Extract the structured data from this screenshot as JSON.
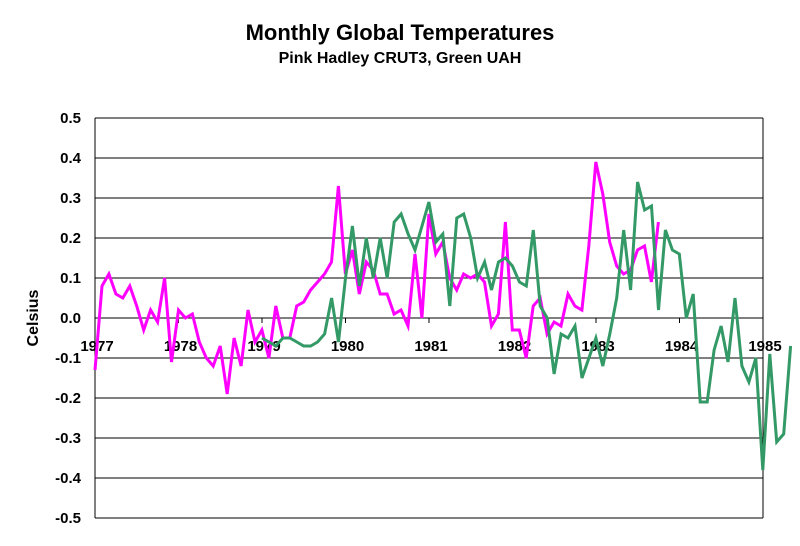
{
  "chart_data": {
    "type": "line",
    "title": "Monthly Global Temperatures",
    "subtitle": "Pink Hadley CRUT3, Green UAH",
    "xlabel": "",
    "ylabel": "Celsius",
    "xlim": [
      1977,
      1985
    ],
    "ylim": [
      -0.5,
      0.5
    ],
    "x_ticks": [
      1977,
      1978,
      1979,
      1980,
      1981,
      1982,
      1983,
      1984,
      1985
    ],
    "y_ticks": [
      0.5,
      0.4,
      0.3,
      0.2,
      0.1,
      0.0,
      -0.1,
      -0.2,
      -0.3,
      -0.4,
      -0.5
    ],
    "y_tick_labels": [
      "0.5",
      "0.4",
      "0.3",
      "0.2",
      "0.1",
      "0.0",
      "-0.1",
      "-0.2",
      "-0.3",
      "-0.4",
      "-0.5"
    ],
    "grid": true,
    "legend": "none",
    "series": [
      {
        "color": "#ff00ff",
        "x_start": 1977.0,
        "x_step": 0.0833,
        "values": [
          -0.13,
          0.08,
          0.11,
          0.06,
          0.05,
          0.08,
          0.03,
          -0.03,
          0.02,
          -0.01,
          0.1,
          -0.11,
          0.02,
          0.0,
          0.01,
          -0.06,
          -0.1,
          -0.12,
          -0.07,
          -0.19,
          -0.05,
          -0.12,
          0.02,
          -0.06,
          -0.03,
          -0.1,
          0.03,
          -0.05,
          -0.05,
          0.03,
          0.04,
          0.07,
          0.09,
          0.11,
          0.14,
          0.33,
          0.11,
          0.17,
          0.06,
          0.14,
          0.12,
          0.06,
          0.06,
          0.01,
          0.02,
          -0.02,
          0.16,
          0.0,
          0.26,
          0.16,
          0.19,
          0.1,
          0.07,
          0.11,
          0.1,
          0.11,
          0.09,
          -0.02,
          0.01,
          0.24,
          -0.03,
          -0.03,
          -0.1,
          0.03,
          0.05,
          -0.04,
          -0.01,
          -0.02,
          0.06,
          0.03,
          0.02,
          0.18,
          0.39,
          0.31,
          0.19,
          0.13,
          0.11,
          0.12,
          0.17,
          0.18,
          0.09,
          0.24
        ]
      },
      {
        "color": "#339966",
        "x_start": 1979.0,
        "x_step": 0.0833,
        "values": [
          -0.05,
          -0.06,
          -0.07,
          -0.05,
          -0.05,
          -0.06,
          -0.07,
          -0.07,
          -0.06,
          -0.04,
          0.05,
          -0.06,
          0.1,
          0.23,
          0.08,
          0.2,
          0.1,
          0.2,
          0.1,
          0.24,
          0.26,
          0.21,
          0.17,
          0.23,
          0.29,
          0.19,
          0.21,
          0.03,
          0.25,
          0.26,
          0.2,
          0.1,
          0.14,
          0.07,
          0.14,
          0.15,
          0.13,
          0.09,
          0.08,
          0.22,
          0.03,
          0.0,
          -0.14,
          -0.04,
          -0.05,
          -0.02,
          -0.15,
          -0.1,
          -0.05,
          -0.12,
          -0.04,
          0.05,
          0.22,
          0.07,
          0.34,
          0.27,
          0.28,
          0.02,
          0.22,
          0.17,
          0.16,
          0.0,
          0.06,
          -0.21,
          -0.21,
          -0.08,
          -0.02,
          -0.11,
          0.05,
          -0.12,
          -0.16,
          -0.1,
          -0.38,
          -0.09,
          -0.31,
          -0.29,
          -0.07
        ]
      }
    ]
  }
}
